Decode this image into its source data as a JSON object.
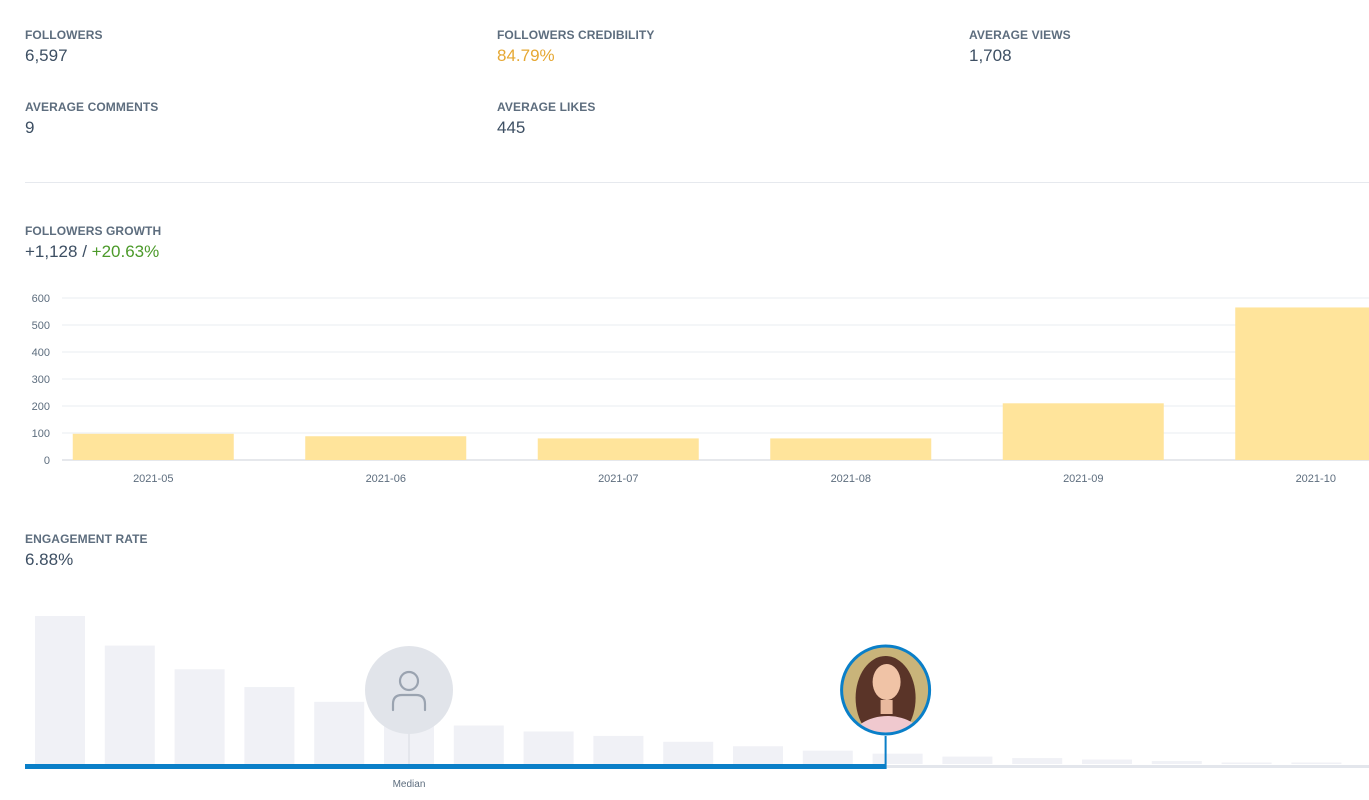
{
  "stats": {
    "followers": {
      "label": "FOLLOWERS",
      "value": "6,597"
    },
    "credibility": {
      "label": "FOLLOWERS CREDIBILITY",
      "value": "84.79%",
      "color": "#e6a833"
    },
    "average_views": {
      "label": "AVERAGE VIEWS",
      "value": "1,708"
    },
    "average_comments": {
      "label": "AVERAGE COMMENTS",
      "value": "9"
    },
    "average_likes": {
      "label": "AVERAGE LIKES",
      "value": "445"
    }
  },
  "growth": {
    "label": "FOLLOWERS GROWTH",
    "value_count": "+1,128",
    "separator": " / ",
    "value_percent": "+20.63%",
    "percent_color": "#4c9a2a"
  },
  "engagement": {
    "label": "ENGAGEMENT RATE",
    "value": "6.88%",
    "median_label": "Median",
    "accent_color": "#0a7fc8"
  },
  "chart_data": [
    {
      "type": "bar",
      "categories": [
        "2021-05",
        "2021-06",
        "2021-07",
        "2021-08",
        "2021-09",
        "2021-10"
      ],
      "values": [
        97,
        88,
        80,
        80,
        210,
        565
      ],
      "yticks": [
        0,
        100,
        200,
        300,
        400,
        500,
        600
      ],
      "ylim": [
        0,
        600
      ],
      "grid": true,
      "color": "#ffe49b"
    },
    {
      "type": "bar",
      "values": [
        100,
        80,
        64,
        52,
        42,
        28,
        26,
        22,
        19,
        15,
        12,
        9,
        7,
        5,
        4,
        3,
        2,
        1,
        1
      ],
      "highlight_index": 12,
      "median_index": 5,
      "color": "#f0f1f6"
    }
  ]
}
